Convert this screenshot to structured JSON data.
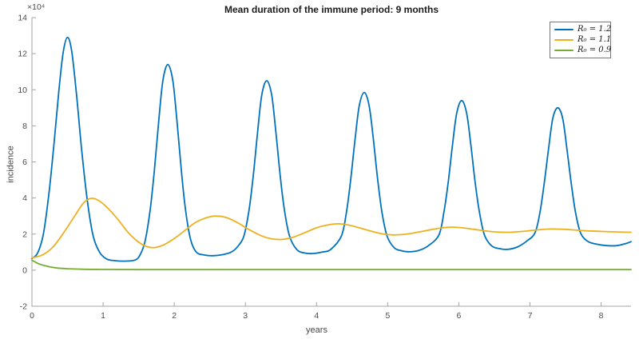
{
  "chart_data": {
    "type": "line",
    "title": "Mean duration of the immune period: 9 months",
    "xlabel": "years",
    "ylabel": "incidence",
    "y_axis_multiplier": "×10⁴",
    "xlim": [
      0,
      8.42
    ],
    "ylim": [
      -2,
      14
    ],
    "xticks": [
      0,
      1,
      2,
      3,
      4,
      5,
      6,
      7,
      8
    ],
    "yticks": [
      -2,
      0,
      2,
      4,
      6,
      8,
      10,
      12,
      14
    ],
    "grid": false,
    "legend_position": "top-right",
    "axis_color": "#a3a3a3",
    "tick_label_color": "#4d4d4d",
    "series": [
      {
        "id": "r0-1-2",
        "name": "R₀ = 1.2",
        "color": "#0072BD",
        "line_width": 1.8,
        "points": [
          [
            0.0,
            0.65
          ],
          [
            0.08,
            0.95
          ],
          [
            0.16,
            2.0
          ],
          [
            0.24,
            4.3
          ],
          [
            0.31,
            7.0
          ],
          [
            0.38,
            10.0
          ],
          [
            0.44,
            12.1
          ],
          [
            0.5,
            12.9
          ],
          [
            0.56,
            12.1
          ],
          [
            0.63,
            9.6
          ],
          [
            0.7,
            6.6
          ],
          [
            0.78,
            3.8
          ],
          [
            0.86,
            1.9
          ],
          [
            0.95,
            1.0
          ],
          [
            1.05,
            0.62
          ],
          [
            1.18,
            0.52
          ],
          [
            1.3,
            0.5
          ],
          [
            1.45,
            0.56
          ],
          [
            1.52,
            0.85
          ],
          [
            1.59,
            1.6
          ],
          [
            1.66,
            3.3
          ],
          [
            1.72,
            5.5
          ],
          [
            1.78,
            8.2
          ],
          [
            1.84,
            10.5
          ],
          [
            1.91,
            11.4
          ],
          [
            1.98,
            10.5
          ],
          [
            2.04,
            8.2
          ],
          [
            2.1,
            5.5
          ],
          [
            2.16,
            3.3
          ],
          [
            2.23,
            1.7
          ],
          [
            2.31,
            1.0
          ],
          [
            2.42,
            0.84
          ],
          [
            2.55,
            0.8
          ],
          [
            2.68,
            0.86
          ],
          [
            2.8,
            1.0
          ],
          [
            2.89,
            1.3
          ],
          [
            2.98,
            1.9
          ],
          [
            3.05,
            3.3
          ],
          [
            3.11,
            5.2
          ],
          [
            3.17,
            7.6
          ],
          [
            3.23,
            9.7
          ],
          [
            3.3,
            10.5
          ],
          [
            3.37,
            9.7
          ],
          [
            3.43,
            7.6
          ],
          [
            3.49,
            5.2
          ],
          [
            3.55,
            3.3
          ],
          [
            3.62,
            1.9
          ],
          [
            3.72,
            1.15
          ],
          [
            3.83,
            0.95
          ],
          [
            3.95,
            0.92
          ],
          [
            4.08,
            1.0
          ],
          [
            4.2,
            1.15
          ],
          [
            4.35,
            1.9
          ],
          [
            4.42,
            3.2
          ],
          [
            4.48,
            5.0
          ],
          [
            4.54,
            7.2
          ],
          [
            4.6,
            9.1
          ],
          [
            4.67,
            9.85
          ],
          [
            4.74,
            9.1
          ],
          [
            4.8,
            7.2
          ],
          [
            4.86,
            5.0
          ],
          [
            4.92,
            3.2
          ],
          [
            4.99,
            1.9
          ],
          [
            5.09,
            1.25
          ],
          [
            5.19,
            1.08
          ],
          [
            5.3,
            1.02
          ],
          [
            5.44,
            1.1
          ],
          [
            5.57,
            1.35
          ],
          [
            5.72,
            1.95
          ],
          [
            5.79,
            3.2
          ],
          [
            5.85,
            4.85
          ],
          [
            5.91,
            6.9
          ],
          [
            5.97,
            8.7
          ],
          [
            6.04,
            9.4
          ],
          [
            6.11,
            8.7
          ],
          [
            6.17,
            6.9
          ],
          [
            6.23,
            4.85
          ],
          [
            6.29,
            3.2
          ],
          [
            6.36,
            1.95
          ],
          [
            6.46,
            1.35
          ],
          [
            6.56,
            1.2
          ],
          [
            6.68,
            1.15
          ],
          [
            6.82,
            1.28
          ],
          [
            6.95,
            1.6
          ],
          [
            7.07,
            2.07
          ],
          [
            7.14,
            3.2
          ],
          [
            7.2,
            4.8
          ],
          [
            7.26,
            6.7
          ],
          [
            7.32,
            8.4
          ],
          [
            7.39,
            9.0
          ],
          [
            7.46,
            8.4
          ],
          [
            7.52,
            6.7
          ],
          [
            7.58,
            4.8
          ],
          [
            7.64,
            3.2
          ],
          [
            7.71,
            2.07
          ],
          [
            7.81,
            1.6
          ],
          [
            7.93,
            1.45
          ],
          [
            8.08,
            1.36
          ],
          [
            8.22,
            1.36
          ],
          [
            8.35,
            1.48
          ],
          [
            8.42,
            1.58
          ]
        ]
      },
      {
        "id": "r0-1-1",
        "name": "R₀ = 1.1",
        "color": "#EDB120",
        "line_width": 1.8,
        "points": [
          [
            0.0,
            0.68
          ],
          [
            0.15,
            0.85
          ],
          [
            0.3,
            1.3
          ],
          [
            0.45,
            2.1
          ],
          [
            0.6,
            3.0
          ],
          [
            0.72,
            3.7
          ],
          [
            0.82,
            3.97
          ],
          [
            0.92,
            3.9
          ],
          [
            1.05,
            3.5
          ],
          [
            1.2,
            2.85
          ],
          [
            1.35,
            2.1
          ],
          [
            1.5,
            1.55
          ],
          [
            1.62,
            1.3
          ],
          [
            1.72,
            1.25
          ],
          [
            1.85,
            1.4
          ],
          [
            2.0,
            1.75
          ],
          [
            2.15,
            2.2
          ],
          [
            2.3,
            2.65
          ],
          [
            2.45,
            2.9
          ],
          [
            2.58,
            3.0
          ],
          [
            2.72,
            2.93
          ],
          [
            2.88,
            2.65
          ],
          [
            3.05,
            2.25
          ],
          [
            3.2,
            1.95
          ],
          [
            3.35,
            1.75
          ],
          [
            3.5,
            1.7
          ],
          [
            3.65,
            1.8
          ],
          [
            3.82,
            2.05
          ],
          [
            4.0,
            2.35
          ],
          [
            4.15,
            2.5
          ],
          [
            4.3,
            2.57
          ],
          [
            4.45,
            2.5
          ],
          [
            4.6,
            2.35
          ],
          [
            4.75,
            2.18
          ],
          [
            4.9,
            2.03
          ],
          [
            5.05,
            1.96
          ],
          [
            5.2,
            1.97
          ],
          [
            5.35,
            2.05
          ],
          [
            5.55,
            2.2
          ],
          [
            5.72,
            2.32
          ],
          [
            5.87,
            2.38
          ],
          [
            6.02,
            2.36
          ],
          [
            6.2,
            2.27
          ],
          [
            6.38,
            2.17
          ],
          [
            6.55,
            2.11
          ],
          [
            6.72,
            2.1
          ],
          [
            6.9,
            2.15
          ],
          [
            7.1,
            2.23
          ],
          [
            7.28,
            2.28
          ],
          [
            7.45,
            2.27
          ],
          [
            7.62,
            2.23
          ],
          [
            7.8,
            2.18
          ],
          [
            8.0,
            2.15
          ],
          [
            8.2,
            2.12
          ],
          [
            8.42,
            2.1
          ]
        ]
      },
      {
        "id": "r0-0-9",
        "name": "R₀ = 0.9",
        "color": "#77AC30",
        "line_width": 1.8,
        "points": [
          [
            0.0,
            0.55
          ],
          [
            0.08,
            0.38
          ],
          [
            0.16,
            0.27
          ],
          [
            0.25,
            0.18
          ],
          [
            0.35,
            0.12
          ],
          [
            0.5,
            0.08
          ],
          [
            0.7,
            0.05
          ],
          [
            1.0,
            0.04
          ],
          [
            1.5,
            0.03
          ],
          [
            2.5,
            0.03
          ],
          [
            4.0,
            0.03
          ],
          [
            6.0,
            0.03
          ],
          [
            8.42,
            0.03
          ]
        ]
      }
    ]
  }
}
